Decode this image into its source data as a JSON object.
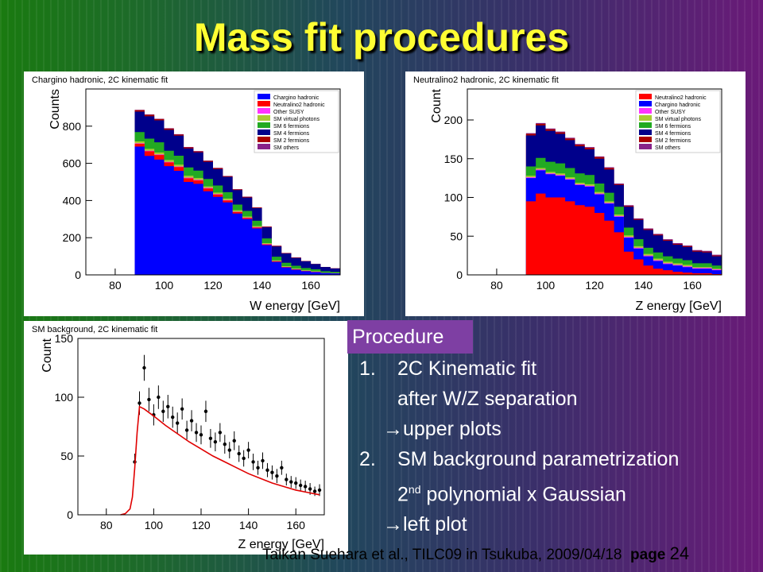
{
  "title": "Mass fit procedures",
  "procedure": {
    "heading": "Procedure",
    "step1_num": "1.",
    "step1_line1": "2C Kinematic fit",
    "step1_line2": "after W/Z separation",
    "step1_arrow": "→upper plots",
    "step2_num": "2.",
    "step2_line1": "SM background parametrization",
    "step2_line2_pre": "2",
    "step2_line2_sup": "nd",
    "step2_line2_post": " polynomial x Gaussian",
    "step2_arrow": "→left plot"
  },
  "footer": {
    "text": "Taikan Suehara et al., TILC09 in Tsukuba, 2009/04/18",
    "page_label": "page",
    "page_number": "24"
  },
  "colors": {
    "title": "#ffff33",
    "procedure_bg": "#7e3fa3",
    "fit_line": "#e00000"
  },
  "chart_data": [
    {
      "type": "area",
      "stacked": true,
      "title": "Chargino hadronic, 2C kinematic fit",
      "xlabel": "W energy [GeV]",
      "ylabel": "Counts",
      "xlim": [
        68,
        172
      ],
      "ylim": [
        0,
        1000
      ],
      "xticks": [
        80,
        100,
        120,
        140,
        160
      ],
      "yticks": [
        0,
        200,
        400,
        600,
        800
      ],
      "x": [
        80,
        84,
        88,
        92,
        96,
        100,
        104,
        108,
        112,
        116,
        120,
        124,
        128,
        132,
        136,
        140,
        144,
        148,
        152,
        156,
        160,
        164,
        168
      ],
      "series": [
        {
          "name": "Chargino hadronic",
          "color": "#0000ff",
          "values": [
            0,
            0,
            690,
            640,
            620,
            585,
            560,
            500,
            490,
            450,
            420,
            390,
            330,
            300,
            250,
            160,
            70,
            40,
            28,
            20,
            15,
            10,
            8
          ]
        },
        {
          "name": "Neutralino2 hadronic",
          "color": "#ff0000",
          "values": [
            0,
            0,
            15,
            25,
            25,
            20,
            20,
            20,
            18,
            15,
            12,
            10,
            8,
            6,
            5,
            4,
            3,
            2,
            2,
            1,
            1,
            0,
            0
          ]
        },
        {
          "name": "Other SUSY",
          "color": "#ff33ff",
          "values": [
            0,
            0,
            3,
            3,
            3,
            3,
            3,
            3,
            3,
            3,
            3,
            2,
            2,
            2,
            2,
            2,
            1,
            1,
            1,
            1,
            1,
            0,
            0
          ]
        },
        {
          "name": "SM virtual photons",
          "color": "#aacc33",
          "values": [
            0,
            0,
            10,
            10,
            10,
            10,
            10,
            10,
            10,
            8,
            8,
            8,
            8,
            6,
            6,
            5,
            4,
            4,
            3,
            3,
            3,
            2,
            2
          ]
        },
        {
          "name": "SM 6 fermions",
          "color": "#22aa22",
          "values": [
            0,
            0,
            50,
            55,
            55,
            50,
            48,
            45,
            40,
            40,
            38,
            35,
            30,
            30,
            28,
            25,
            20,
            18,
            15,
            12,
            10,
            8,
            6
          ]
        },
        {
          "name": "SM 4 fermions",
          "color": "#00008b",
          "values": [
            0,
            0,
            110,
            120,
            118,
            112,
            108,
            102,
            98,
            92,
            88,
            82,
            78,
            72,
            68,
            60,
            55,
            50,
            42,
            36,
            28,
            22,
            18
          ]
        },
        {
          "name": "SM 2 fermions",
          "color": "#aa0000",
          "values": [
            0,
            0,
            8,
            8,
            7,
            7,
            6,
            6,
            5,
            5,
            5,
            4,
            4,
            4,
            3,
            3,
            3,
            2,
            2,
            2,
            1,
            1,
            1
          ]
        },
        {
          "name": "SM others",
          "color": "#882288",
          "values": [
            0,
            0,
            2,
            2,
            2,
            2,
            2,
            2,
            2,
            2,
            2,
            1,
            1,
            1,
            1,
            1,
            1,
            1,
            1,
            0,
            0,
            0,
            0
          ]
        }
      ]
    },
    {
      "type": "area",
      "stacked": true,
      "title": "Neutralino2 hadronic, 2C kinematic fit",
      "xlabel": "Z energy [GeV]",
      "ylabel": "Count",
      "xlim": [
        68,
        172
      ],
      "ylim": [
        0,
        240
      ],
      "xticks": [
        80,
        100,
        120,
        140,
        160
      ],
      "yticks": [
        0,
        50,
        100,
        150,
        200
      ],
      "x": [
        92,
        96,
        100,
        104,
        108,
        112,
        116,
        120,
        124,
        128,
        132,
        136,
        140,
        144,
        148,
        152,
        156,
        160,
        164,
        168,
        172
      ],
      "series": [
        {
          "name": "Neutralino2 hadronic",
          "color": "#ff0000",
          "values": [
            95,
            105,
            100,
            100,
            95,
            90,
            88,
            80,
            70,
            55,
            30,
            20,
            12,
            8,
            6,
            4,
            3,
            2,
            2,
            1,
            0
          ]
        },
        {
          "name": "Chargino hadronic",
          "color": "#0000ff",
          "values": [
            30,
            30,
            30,
            28,
            28,
            26,
            26,
            24,
            22,
            20,
            18,
            14,
            12,
            10,
            8,
            8,
            7,
            6,
            6,
            5,
            0
          ]
        },
        {
          "name": "Other SUSY",
          "color": "#ff33ff",
          "values": [
            1,
            1,
            1,
            1,
            1,
            1,
            1,
            1,
            1,
            1,
            1,
            1,
            1,
            1,
            1,
            1,
            1,
            1,
            1,
            1,
            0
          ]
        },
        {
          "name": "SM virtual photons",
          "color": "#aacc33",
          "values": [
            2,
            2,
            2,
            2,
            2,
            2,
            2,
            2,
            2,
            2,
            2,
            2,
            2,
            2,
            2,
            2,
            2,
            1,
            1,
            1,
            0
          ]
        },
        {
          "name": "SM 6 fermions",
          "color": "#22aa22",
          "values": [
            12,
            13,
            13,
            13,
            12,
            12,
            12,
            11,
            11,
            10,
            10,
            9,
            8,
            8,
            7,
            6,
            6,
            5,
            5,
            4,
            0
          ]
        },
        {
          "name": "SM 4 fermions",
          "color": "#00008b",
          "values": [
            40,
            42,
            40,
            38,
            36,
            35,
            33,
            32,
            30,
            28,
            27,
            25,
            23,
            22,
            20,
            18,
            17,
            15,
            14,
            12,
            0
          ]
        },
        {
          "name": "SM 2 fermions",
          "color": "#aa0000",
          "values": [
            2,
            2,
            2,
            2,
            2,
            2,
            2,
            2,
            2,
            1,
            1,
            1,
            1,
            1,
            1,
            1,
            1,
            1,
            1,
            1,
            0
          ]
        },
        {
          "name": "SM others",
          "color": "#882288",
          "values": [
            1,
            1,
            1,
            1,
            1,
            1,
            1,
            1,
            1,
            1,
            1,
            1,
            1,
            1,
            1,
            1,
            1,
            1,
            1,
            1,
            0
          ]
        }
      ]
    },
    {
      "type": "scatter",
      "title": "SM background, 2C kinematic fit",
      "xlabel": "Z energy [GeV]",
      "ylabel": "Count",
      "xlim": [
        68,
        172
      ],
      "ylim": [
        0,
        150
      ],
      "xticks": [
        80,
        100,
        120,
        140,
        160
      ],
      "yticks": [
        0,
        50,
        100,
        150
      ],
      "points": {
        "x": [
          92,
          94,
          96,
          98,
          100,
          102,
          104,
          106,
          108,
          110,
          112,
          114,
          116,
          118,
          120,
          122,
          124,
          126,
          128,
          130,
          132,
          134,
          136,
          138,
          140,
          142,
          144,
          146,
          148,
          150,
          152,
          154,
          156,
          158,
          160,
          162,
          164,
          166,
          168,
          170
        ],
        "y": [
          45,
          95,
          125,
          98,
          85,
          100,
          88,
          92,
          83,
          78,
          90,
          72,
          80,
          70,
          68,
          88,
          65,
          62,
          70,
          60,
          55,
          63,
          52,
          48,
          55,
          45,
          40,
          46,
          38,
          36,
          33,
          40,
          30,
          28,
          27,
          25,
          24,
          22,
          20,
          21
        ],
        "err": [
          7,
          10,
          11,
          10,
          9,
          10,
          9,
          10,
          9,
          9,
          9,
          8,
          9,
          8,
          8,
          9,
          8,
          8,
          8,
          8,
          7,
          8,
          7,
          7,
          7,
          7,
          6,
          7,
          6,
          6,
          6,
          6,
          5,
          5,
          5,
          5,
          5,
          5,
          4,
          5
        ]
      },
      "fit_curve": {
        "x": [
          86,
          88,
          90,
          91,
          92,
          93,
          94,
          96,
          100,
          105,
          110,
          115,
          120,
          125,
          130,
          135,
          140,
          145,
          150,
          155,
          160,
          165,
          170
        ],
        "y": [
          0,
          1,
          5,
          15,
          40,
          70,
          92,
          90,
          84,
          76,
          69,
          62,
          56,
          50,
          45,
          40,
          35,
          31,
          27,
          24,
          21,
          19,
          17
        ]
      }
    }
  ]
}
